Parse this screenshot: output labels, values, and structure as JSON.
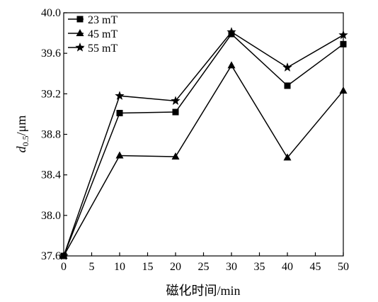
{
  "chart_data": {
    "type": "line",
    "x": [
      0,
      10,
      20,
      30,
      40,
      50
    ],
    "series": [
      {
        "name": "23 mT",
        "marker": "square",
        "values": [
          37.6,
          39.01,
          39.02,
          39.79,
          39.28,
          39.69
        ]
      },
      {
        "name": "45 mT",
        "marker": "triangle",
        "values": [
          37.6,
          38.59,
          38.58,
          39.48,
          38.57,
          39.23
        ]
      },
      {
        "name": "55 mT",
        "marker": "star",
        "values": [
          37.6,
          39.18,
          39.13,
          39.81,
          39.46,
          39.78
        ]
      }
    ],
    "xlabel": "磁化时间/min",
    "ylabel_main": "d",
    "ylabel_sub": "0.5",
    "ylabel_unit": "/μm",
    "xlim": [
      0,
      50
    ],
    "ylim": [
      37.6,
      40.0
    ],
    "x_ticks": [
      0,
      5,
      10,
      15,
      20,
      25,
      30,
      35,
      40,
      45,
      50
    ],
    "y_ticks": [
      37.6,
      38.0,
      38.4,
      38.8,
      39.2,
      39.6,
      40.0
    ],
    "y_tick_labels": [
      "37.6",
      "38.0",
      "38.4",
      "38.8",
      "39.2",
      "39.6",
      "40.0"
    ],
    "grid": false,
    "legend_position": "top-left",
    "line_color": "#000000"
  }
}
